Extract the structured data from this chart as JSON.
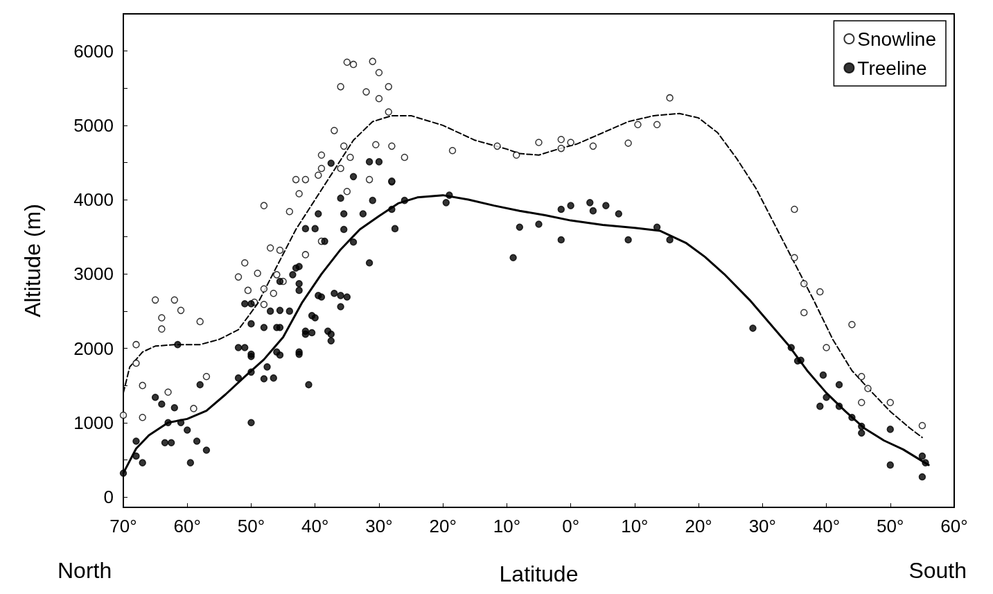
{
  "chart_data": {
    "type": "scatter",
    "xlabel": "Latitude",
    "ylabel": "Altitude (m)",
    "annotations": [
      "North",
      "South"
    ],
    "xlim": [
      -70,
      60
    ],
    "xticks": [
      {
        "value": -70,
        "label": "70°"
      },
      {
        "value": -60,
        "label": "60°"
      },
      {
        "value": -50,
        "label": "50°"
      },
      {
        "value": -40,
        "label": "40°"
      },
      {
        "value": -30,
        "label": "30°"
      },
      {
        "value": -20,
        "label": "20°"
      },
      {
        "value": -10,
        "label": "10°"
      },
      {
        "value": 0,
        "label": "0°"
      },
      {
        "value": 10,
        "label": "10°"
      },
      {
        "value": 20,
        "label": "20°"
      },
      {
        "value": 30,
        "label": "30°"
      },
      {
        "value": 40,
        "label": "40°"
      },
      {
        "value": 50,
        "label": "50°"
      },
      {
        "value": 60,
        "label": "60°"
      }
    ],
    "ylim": [
      -140,
      6500
    ],
    "yticks": [
      0,
      {
        "value": 500,
        "label": null
      },
      1000,
      {
        "value": 1500,
        "label": null
      },
      2000,
      {
        "value": 2500,
        "label": null
      },
      3000,
      {
        "value": 3500,
        "label": null
      },
      4000,
      {
        "value": 4500,
        "label": null
      },
      5000,
      {
        "value": 5500,
        "label": null
      },
      6000
    ],
    "grid": false,
    "legend": "top right",
    "marker": "circle",
    "series": [
      {
        "name": "Snowline",
        "color": "#ffffff",
        "x": [
          -70,
          -68,
          -68,
          -67,
          -67,
          -65,
          -62,
          -61,
          -64,
          -64,
          -58,
          -63,
          -59,
          -57,
          -35,
          -34,
          -31,
          -30,
          -36,
          -32,
          -30,
          -28.5,
          -28.5,
          -37,
          -35.5,
          -30.5,
          -28,
          -26,
          -34.5,
          -39,
          -39,
          -36,
          -43,
          -41.5,
          -39.5,
          -31.5,
          -48,
          -42.5,
          -35,
          -44,
          -39,
          -47,
          -45.5,
          -51,
          -52,
          -49,
          -46,
          -50.5,
          -48,
          -46.5,
          -49.5,
          -48,
          -45,
          -41.5,
          -28,
          -18.5,
          -11.5,
          -8.5,
          -5,
          -1.5,
          0,
          -1.5,
          3.5,
          9,
          10.5,
          13.5,
          15.5,
          35,
          35,
          36.5,
          39,
          36.5,
          44,
          40,
          45.5,
          46.5,
          45.5,
          50,
          55
        ],
        "values": [
          1100,
          1800,
          2050,
          1500,
          1070,
          2650,
          2650,
          2510,
          2410,
          2260,
          2360,
          1410,
          1190,
          1620,
          5850,
          5820,
          5860,
          5710,
          5520,
          5450,
          5360,
          5520,
          5180,
          4930,
          4720,
          4740,
          4720,
          4570,
          4570,
          4600,
          4420,
          4420,
          4270,
          4270,
          4330,
          4270,
          3920,
          4080,
          4110,
          3840,
          3440,
          3350,
          3320,
          3150,
          2960,
          3010,
          2990,
          2780,
          2800,
          2740,
          2620,
          2590,
          2900,
          3260,
          4250,
          4660,
          4720,
          4600,
          4770,
          4810,
          4770,
          4690,
          4720,
          4760,
          5010,
          5010,
          5370,
          3870,
          3220,
          2870,
          2760,
          2480,
          2320,
          2010,
          1620,
          1460,
          1270,
          1270,
          960
        ]
      },
      {
        "name": "Treeline",
        "color": "#000000",
        "x": [
          -70,
          -68,
          -68,
          -67,
          -65,
          -64,
          -62,
          -63,
          -61,
          -63.5,
          -62.5,
          -60,
          -59.5,
          -58.5,
          -57,
          -58,
          -61.5,
          -50,
          -41,
          -52,
          -50,
          -48,
          -46.5,
          -50,
          -52,
          -47.5,
          -45.5,
          -42.5,
          -51,
          -47,
          -45.5,
          -50,
          -46,
          -41.5,
          -40.5,
          -37.5,
          -37.5,
          -40,
          -37,
          -39,
          -42.5,
          -42.5,
          -43.5,
          -45.5,
          -50,
          -31.5,
          -30,
          -34,
          -28,
          -36,
          -31,
          -28,
          -26,
          -32.5,
          -35.5,
          -39.5,
          -35.5,
          -27.5,
          -31.5,
          -34,
          -38.5,
          -41.5,
          -40,
          -43,
          -42.5,
          -39.5,
          -36,
          -35,
          -36,
          -38,
          -41.5,
          -40.5,
          -45.5,
          -48,
          -51,
          -46,
          -42.5,
          -50,
          -44,
          -37.5,
          -19,
          -19.5,
          -8,
          -5,
          -9,
          -1.5,
          -1.5,
          0,
          3,
          3.5,
          5.5,
          7.5,
          9,
          13.5,
          15.5,
          28.5,
          36,
          35.5,
          34.5,
          39.5,
          42,
          39,
          40,
          42,
          44,
          45.5,
          45.5,
          50,
          50,
          55,
          55.5,
          55
        ],
        "values": [
          320,
          550,
          750,
          460,
          1340,
          1250,
          1200,
          1000,
          1000,
          730,
          730,
          900,
          460,
          750,
          630,
          1510,
          2050,
          1000,
          1510,
          1600,
          1680,
          1590,
          1600,
          1920,
          2010,
          1750,
          1910,
          1920,
          2600,
          2500,
          2510,
          2330,
          2280,
          2190,
          2210,
          2190,
          2100,
          2410,
          2740,
          2690,
          3100,
          2780,
          2990,
          2900,
          2600,
          4510,
          4510,
          4310,
          4240,
          4020,
          3990,
          3870,
          3990,
          3810,
          3810,
          3810,
          3600,
          3610,
          3150,
          3430,
          3440,
          3610,
          3610,
          3080,
          2870,
          2710,
          2710,
          2690,
          2560,
          2230,
          2230,
          2440,
          2280,
          2280,
          2010,
          1950,
          1950,
          1890,
          2500,
          4490,
          4060,
          3960,
          3630,
          3670,
          3220,
          3460,
          3870,
          3920,
          3960,
          3850,
          3920,
          3810,
          3460,
          3630,
          3460,
          2270,
          1840,
          1830,
          2010,
          1640,
          1510,
          1220,
          1340,
          1220,
          1070,
          950,
          860,
          910,
          430,
          550,
          460,
          270
        ]
      },
      {
        "type": "line",
        "color": "#000000",
        "line_style": "dashed",
        "marker": "none",
        "x": [
          -70,
          -69,
          -67,
          -65,
          -62,
          -58,
          -55,
          -52,
          -49,
          -46,
          -43,
          -40,
          -37,
          -34,
          -31,
          -28,
          -25,
          -20,
          -15,
          -10,
          -8,
          -5,
          -2,
          1,
          5,
          9,
          13,
          17,
          20,
          23,
          26,
          29,
          32,
          35,
          38,
          41,
          44,
          47,
          50,
          53,
          55
        ],
        "values": [
          1400,
          1750,
          1950,
          2030,
          2050,
          2050,
          2120,
          2250,
          2600,
          3100,
          3600,
          4000,
          4400,
          4800,
          5050,
          5130,
          5130,
          5000,
          4800,
          4680,
          4620,
          4600,
          4680,
          4750,
          4900,
          5050,
          5130,
          5160,
          5100,
          4900,
          4550,
          4150,
          3650,
          3150,
          2650,
          2120,
          1700,
          1420,
          1150,
          930,
          800
        ]
      },
      {
        "type": "line",
        "color": "#000000",
        "line_style": "solid",
        "marker": "none",
        "x": [
          -70,
          -68,
          -66,
          -63,
          -60,
          -57,
          -54,
          -51,
          -48,
          -45,
          -42,
          -39,
          -36,
          -33,
          -30,
          -27,
          -24,
          -20,
          -16,
          -12,
          -8,
          -4,
          0,
          5,
          10,
          14,
          18,
          21,
          24,
          28,
          31,
          34,
          37,
          40,
          43,
          46,
          49,
          52,
          56
        ],
        "values": [
          320,
          650,
          830,
          1000,
          1050,
          1160,
          1380,
          1620,
          1850,
          2150,
          2620,
          3000,
          3330,
          3600,
          3780,
          3950,
          4030,
          4060,
          4000,
          3920,
          3850,
          3790,
          3720,
          3660,
          3620,
          3580,
          3420,
          3230,
          3000,
          2650,
          2350,
          2050,
          1700,
          1400,
          1150,
          920,
          760,
          640,
          430
        ]
      }
    ]
  }
}
